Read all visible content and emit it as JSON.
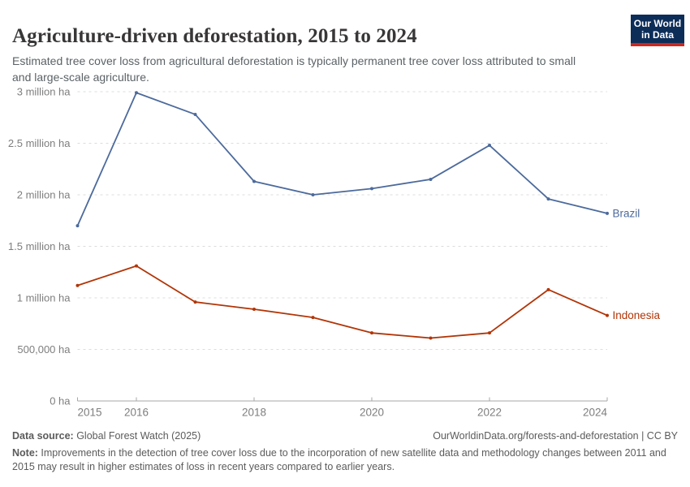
{
  "header": {
    "title": "Agriculture-driven deforestation, 2015 to 2024",
    "subtitle": "Estimated tree cover loss from agricultural deforestation is typically permanent tree cover loss attributed to small and large-scale agriculture.",
    "logo": {
      "line1": "Our World",
      "line2": "in Data",
      "bg_color": "#0d2d59",
      "accent_color": "#ce261e"
    }
  },
  "chart_data": {
    "type": "line",
    "title": "Agriculture-driven deforestation, 2015 to 2024",
    "unit": "hectares (million ha)",
    "grid": true,
    "legend_position": "end-of-line-labels",
    "x": [
      2015,
      2016,
      2017,
      2018,
      2019,
      2020,
      2021,
      2022,
      2023,
      2024
    ],
    "series": [
      {
        "name": "Brazil",
        "color": "#4c6a9c",
        "values": [
          1.7,
          2.99,
          2.78,
          2.13,
          2.0,
          2.06,
          2.15,
          2.48,
          1.96,
          1.82
        ]
      },
      {
        "name": "Indonesia",
        "color": "#b13507",
        "values": [
          1.12,
          1.31,
          0.96,
          0.89,
          0.81,
          0.66,
          0.61,
          0.66,
          1.08,
          0.83
        ]
      }
    ],
    "y_axis": {
      "range": [
        0,
        3
      ],
      "ticks": [
        {
          "value": 0,
          "label": "0 ha"
        },
        {
          "value": 0.5,
          "label": "500,000 ha"
        },
        {
          "value": 1,
          "label": "1 million ha"
        },
        {
          "value": 1.5,
          "label": "1.5 million ha"
        },
        {
          "value": 2,
          "label": "2 million ha"
        },
        {
          "value": 2.5,
          "label": "2.5 million ha"
        },
        {
          "value": 3,
          "label": "3 million ha"
        }
      ]
    },
    "x_axis": {
      "range": [
        2015,
        2024
      ],
      "tick_years": [
        2015,
        2016,
        2018,
        2020,
        2022,
        2024
      ]
    }
  },
  "footer": {
    "datasource_label": "Data source:",
    "datasource_value": " Global Forest Watch (2025)",
    "rights": "OurWorldinData.org/forests-and-deforestation | CC BY",
    "note_label": "Note:",
    "note_value": " Improvements in the detection of tree cover loss due to the incorporation of new satellite data and methodology changes between 2011 and 2015 may result in higher estimates of loss in recent years compared to earlier years."
  }
}
